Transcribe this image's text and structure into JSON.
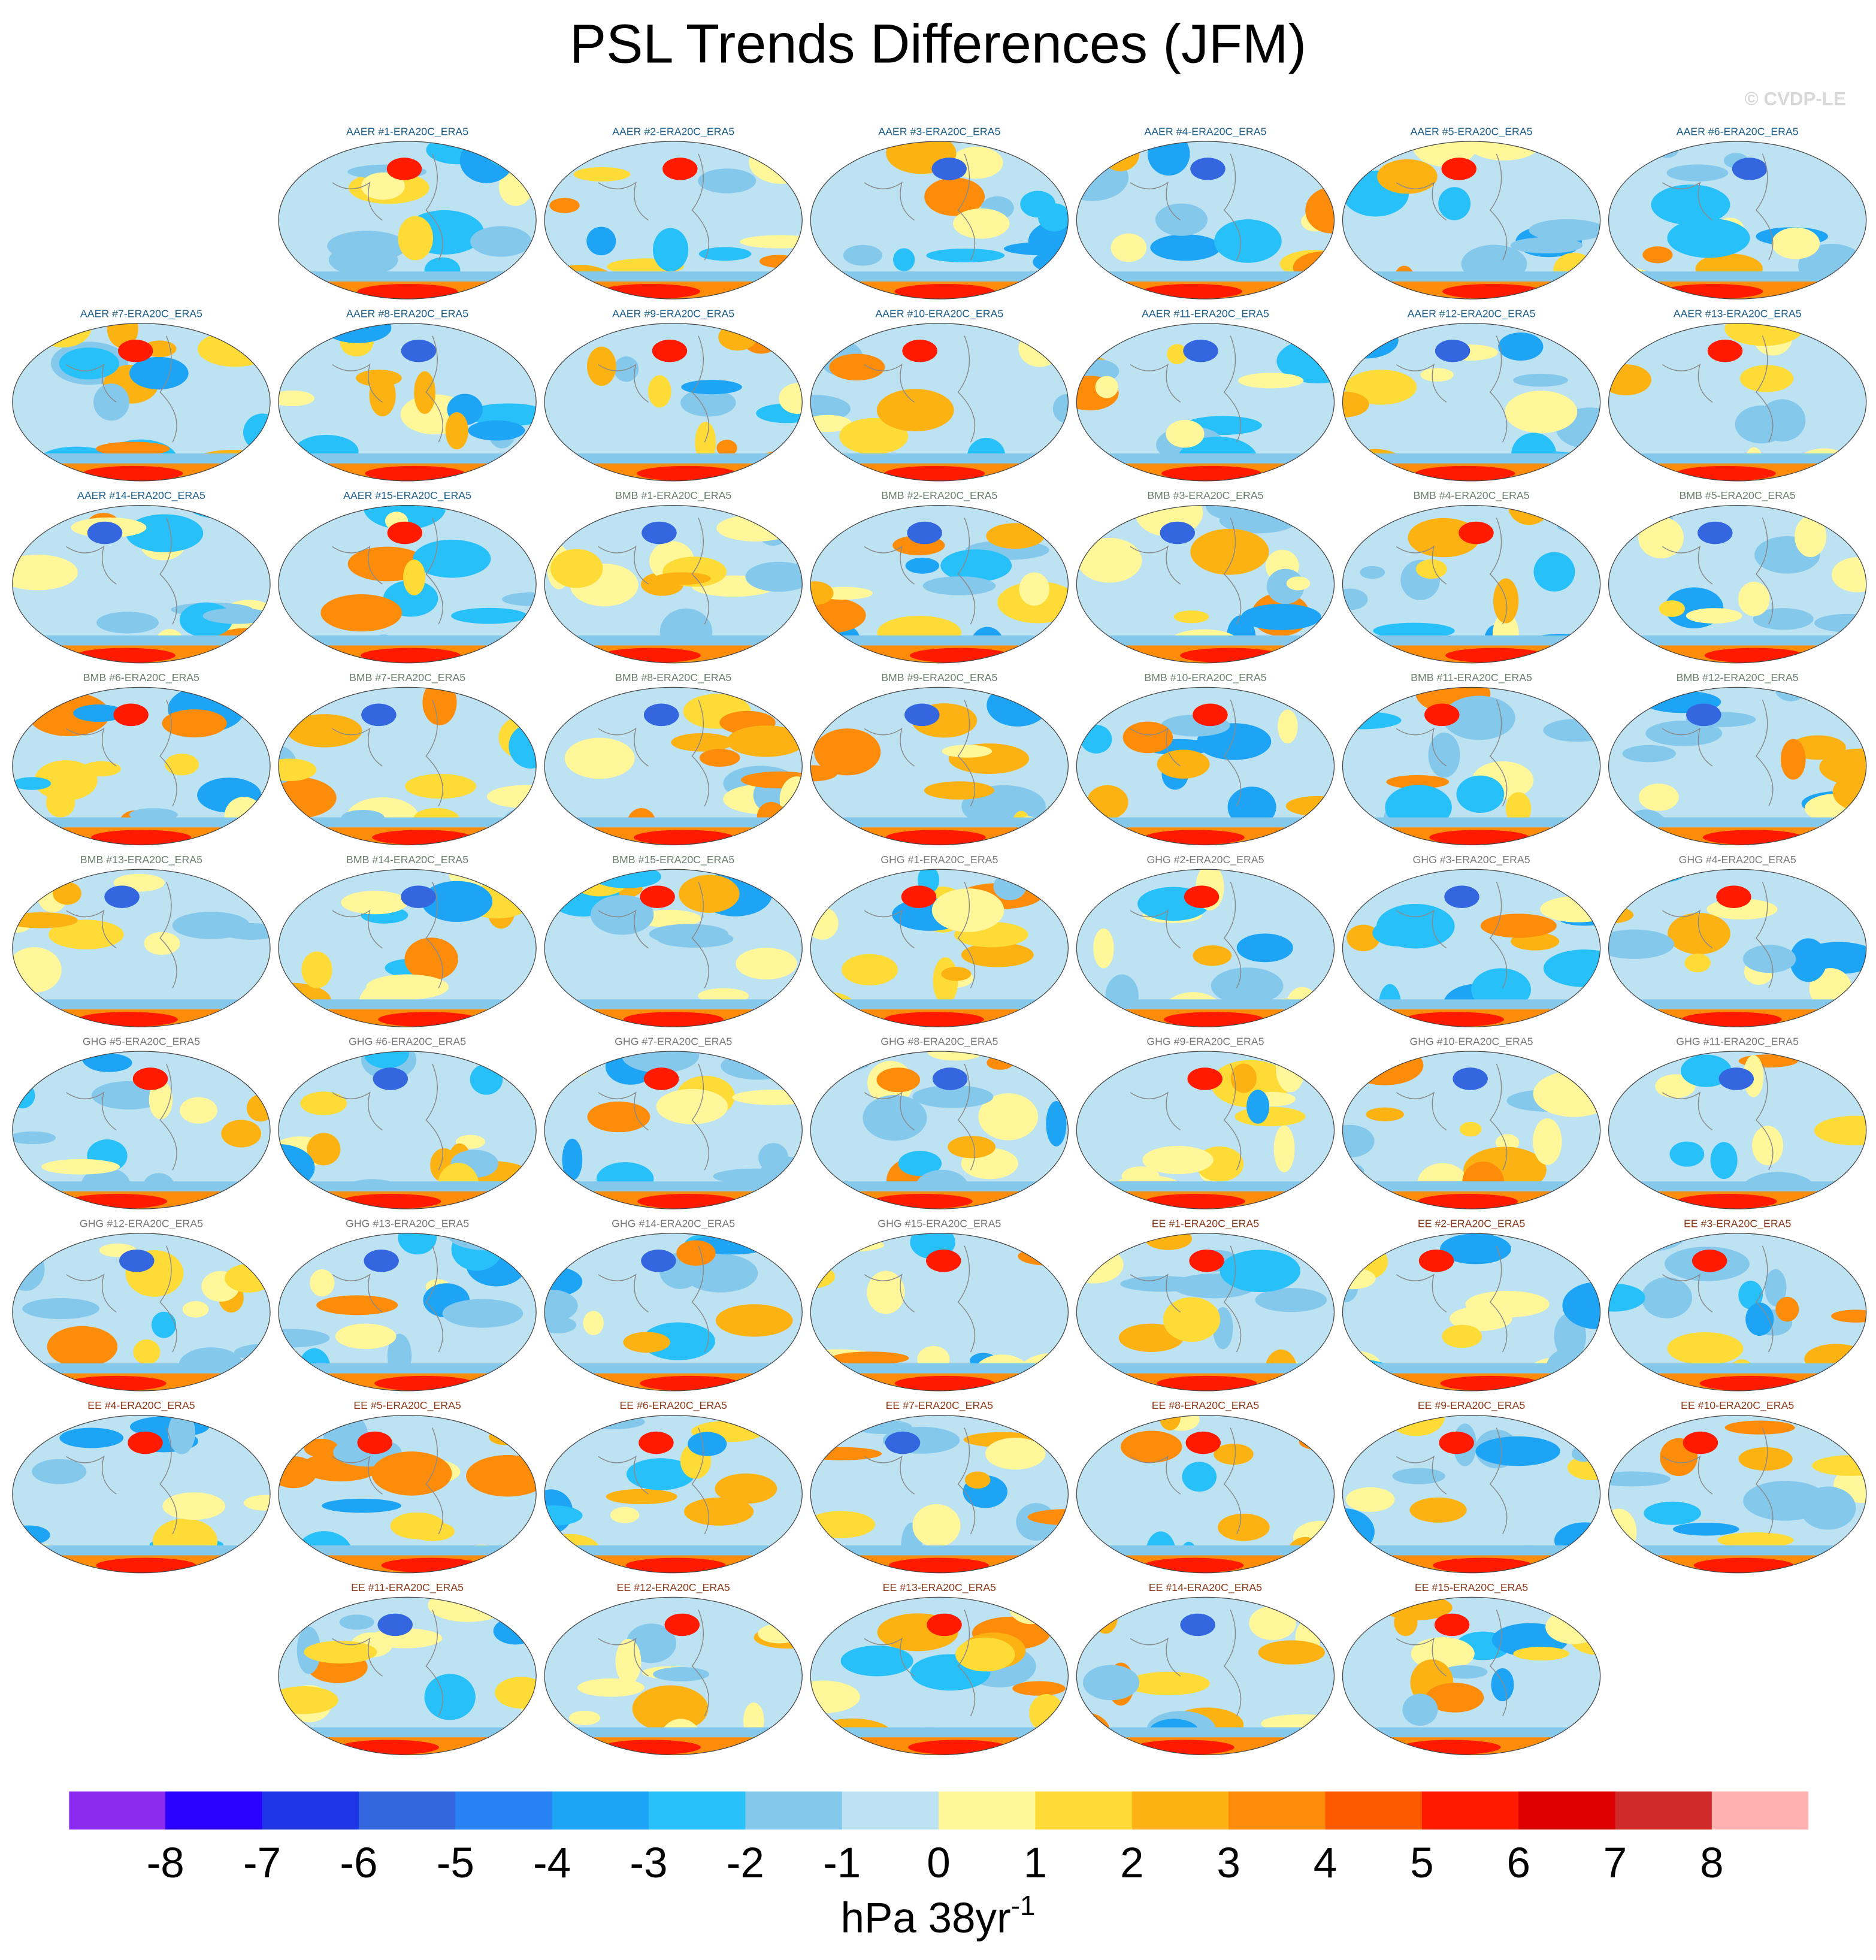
{
  "title": "PSL Trends Differences (JFM)",
  "watermark": "© CVDP-LE",
  "groups": [
    {
      "color": "#1d5f8a",
      "titles": [
        "AAER #1-ERA20C_ERA5",
        "AAER #2-ERA20C_ERA5",
        "AAER #3-ERA20C_ERA5",
        "AAER #4-ERA20C_ERA5",
        "AAER #5-ERA20C_ERA5",
        "AAER #6-ERA20C_ERA5",
        "AAER #7-ERA20C_ERA5",
        "AAER #8-ERA20C_ERA5",
        "AAER #9-ERA20C_ERA5",
        "AAER #10-ERA20C_ERA5",
        "AAER #11-ERA20C_ERA5",
        "AAER #12-ERA20C_ERA5",
        "AAER #13-ERA20C_ERA5",
        "AAER #14-ERA20C_ERA5",
        "AAER #15-ERA20C_ERA5"
      ]
    },
    {
      "color": "#6b7f6e",
      "titles": [
        "BMB #1-ERA20C_ERA5",
        "BMB #2-ERA20C_ERA5",
        "BMB #3-ERA20C_ERA5",
        "BMB #4-ERA20C_ERA5",
        "BMB #5-ERA20C_ERA5",
        "BMB #6-ERA20C_ERA5",
        "BMB #7-ERA20C_ERA5",
        "BMB #8-ERA20C_ERA5",
        "BMB #9-ERA20C_ERA5",
        "BMB #10-ERA20C_ERA5",
        "BMB #11-ERA20C_ERA5",
        "BMB #12-ERA20C_ERA5",
        "BMB #13-ERA20C_ERA5",
        "BMB #14-ERA20C_ERA5",
        "BMB #15-ERA20C_ERA5"
      ]
    },
    {
      "color": "#7a7a7a",
      "titles": [
        "GHG #1-ERA20C_ERA5",
        "GHG #2-ERA20C_ERA5",
        "GHG #3-ERA20C_ERA5",
        "GHG #4-ERA20C_ERA5",
        "GHG #5-ERA20C_ERA5",
        "GHG #6-ERA20C_ERA5",
        "GHG #7-ERA20C_ERA5",
        "GHG #8-ERA20C_ERA5",
        "GHG #9-ERA20C_ERA5",
        "GHG #10-ERA20C_ERA5",
        "GHG #11-ERA20C_ERA5",
        "GHG #12-ERA20C_ERA5",
        "GHG #13-ERA20C_ERA5",
        "GHG #14-ERA20C_ERA5",
        "GHG #15-ERA20C_ERA5"
      ]
    },
    {
      "color": "#8a3a1a",
      "titles": [
        "EE #1-ERA20C_ERA5",
        "EE #2-ERA20C_ERA5",
        "EE #3-ERA20C_ERA5",
        "EE #4-ERA20C_ERA5",
        "EE #5-ERA20C_ERA5",
        "EE #6-ERA20C_ERA5",
        "EE #7-ERA20C_ERA5",
        "EE #8-ERA20C_ERA5",
        "EE #9-ERA20C_ERA5",
        "EE #10-ERA20C_ERA5",
        "EE #11-ERA20C_ERA5",
        "EE #12-ERA20C_ERA5",
        "EE #13-ERA20C_ERA5",
        "EE #14-ERA20C_ERA5",
        "EE #15-ERA20C_ERA5"
      ]
    }
  ],
  "colorbar": {
    "colors": [
      "#8a2cf0",
      "#2a00ff",
      "#1f35e8",
      "#3466e0",
      "#2a80f5",
      "#1ea4f5",
      "#28c0f8",
      "#84c8ec",
      "#bde2f2",
      "#fff79a",
      "#fedb37",
      "#fdb214",
      "#fd8c0a",
      "#fd5a00",
      "#ff1a00",
      "#dd0000",
      "#d02a2a",
      "#ffb0b0"
    ],
    "ticks": [
      -8,
      -7,
      -6,
      -5,
      -4,
      -3,
      -2,
      -1,
      0,
      1,
      2,
      3,
      4,
      5,
      6,
      7,
      8
    ],
    "label": "hPa 38yr",
    "label_superscript": "-1"
  }
}
